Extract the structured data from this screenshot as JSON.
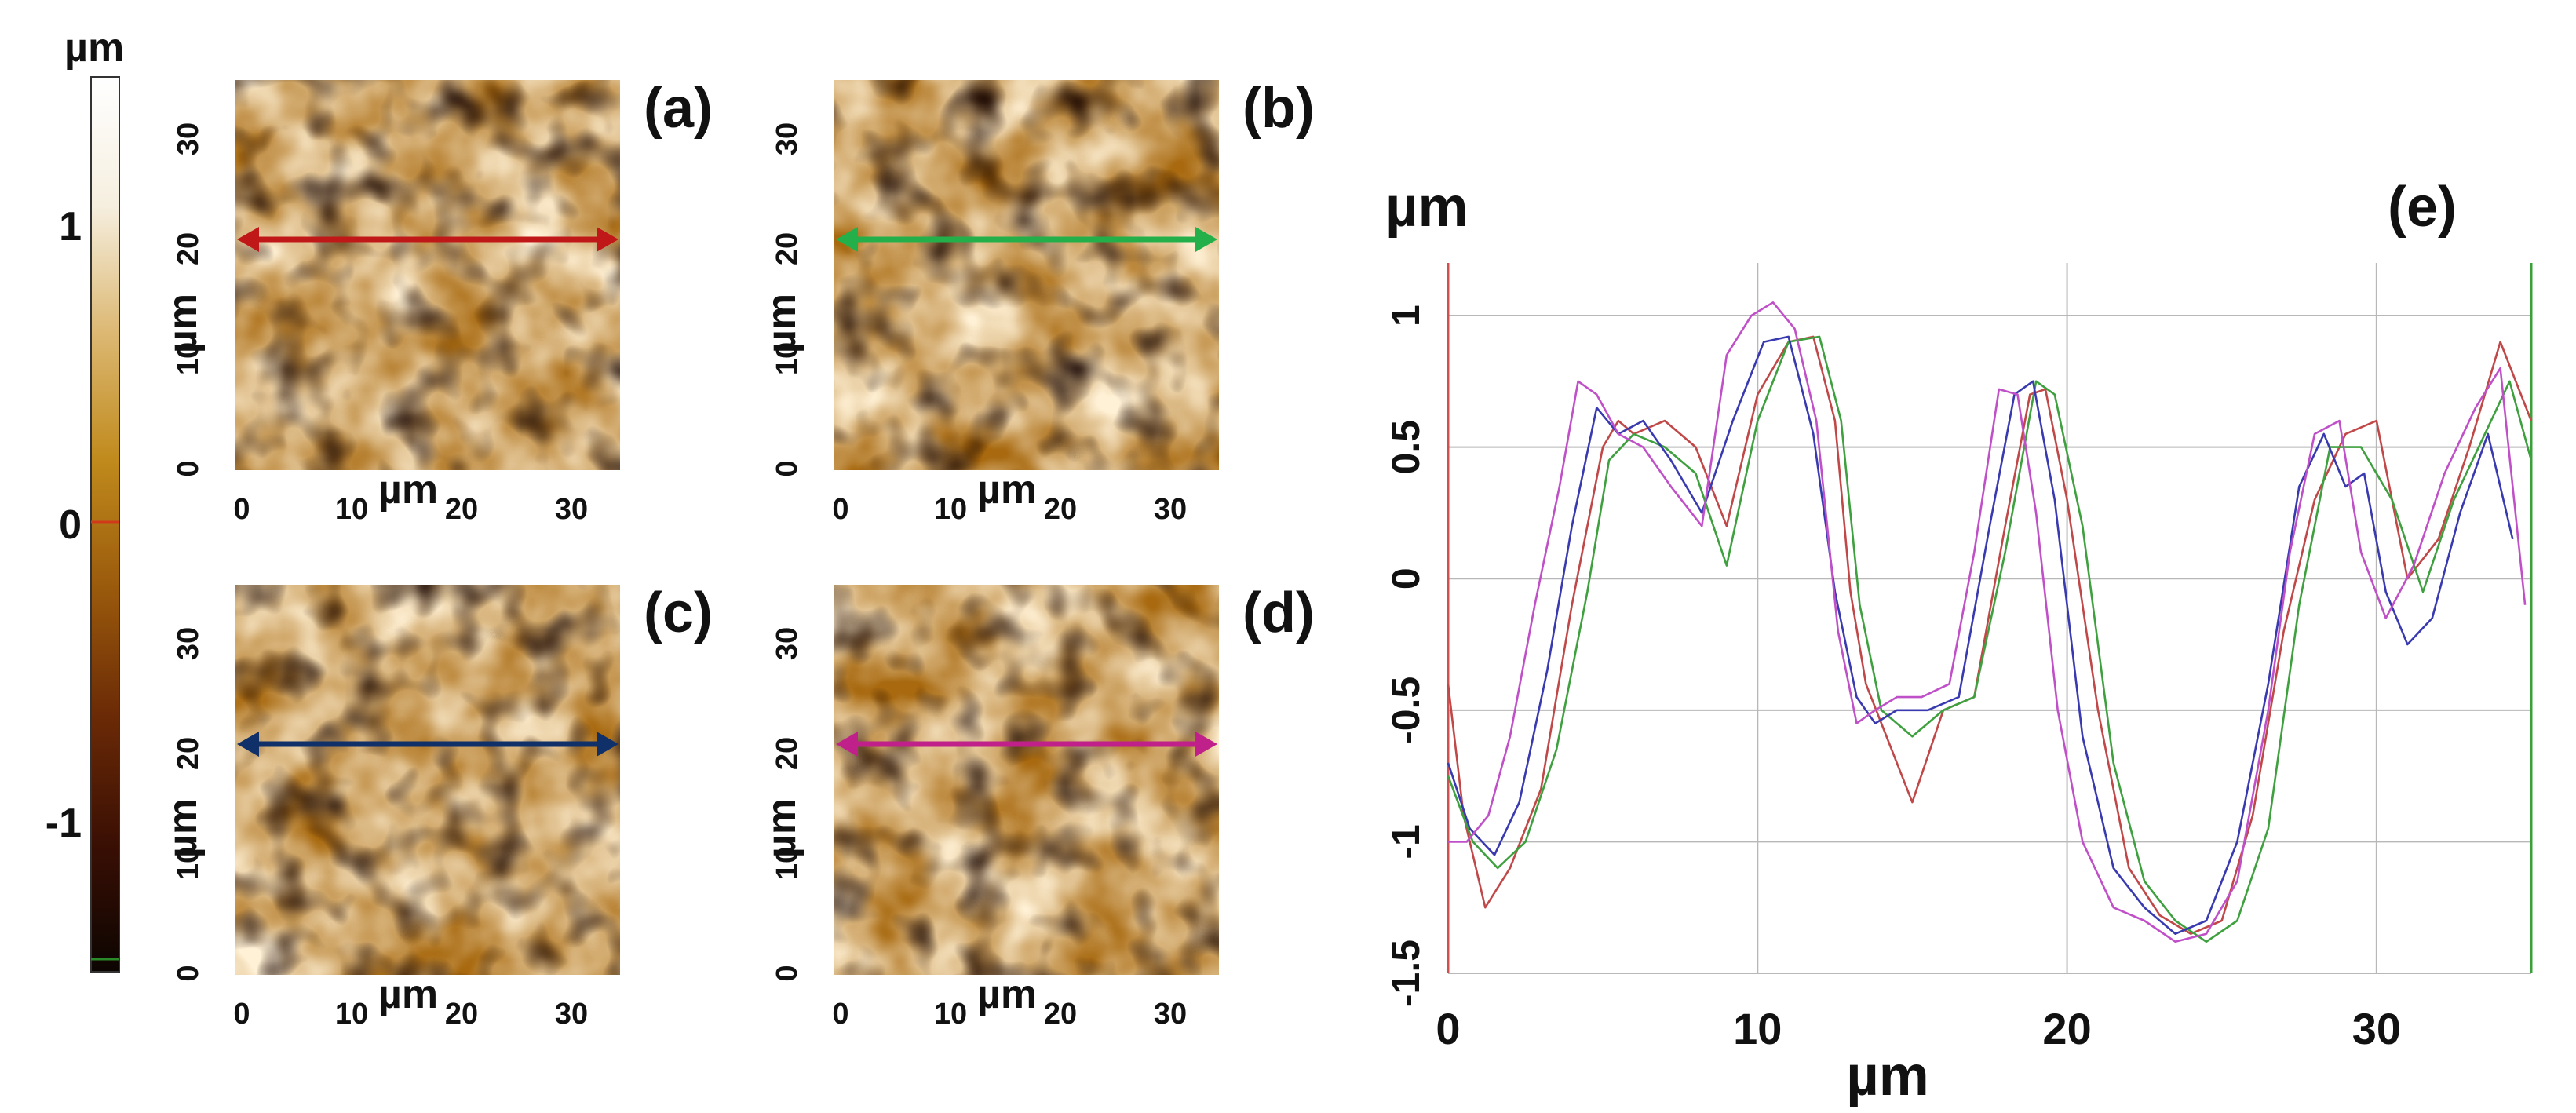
{
  "colorbar": {
    "unit": "µm",
    "ticks": [
      {
        "label": "1",
        "value": 1
      },
      {
        "label": "0",
        "value": 0
      },
      {
        "label": "-1",
        "value": -1
      }
    ],
    "range": [
      -1.5,
      1.5
    ],
    "gradient": [
      "#0c0502",
      "#3a0f04",
      "#6b2a06",
      "#9a5a0c",
      "#c08a1c",
      "#dcb873",
      "#f6efe0",
      "#ffffff"
    ]
  },
  "panels": [
    {
      "label": "(a)",
      "line_color": "#c01818"
    },
    {
      "label": "(b)",
      "line_color": "#23b04a"
    },
    {
      "label": "(c)",
      "line_color": "#10306a"
    },
    {
      "label": "(d)",
      "line_color": "#c0208a"
    }
  ],
  "panel_axis": {
    "unit": "µm",
    "x_ticks": [
      "0",
      "10",
      "20",
      "30"
    ],
    "y_ticks": [
      "0",
      "10",
      "20",
      "30"
    ]
  },
  "chart_data": {
    "type": "line",
    "label": "(e)",
    "ylabel": "µm",
    "xlabel": "µm",
    "xlim": [
      0,
      35
    ],
    "ylim": [
      -1.5,
      1.2
    ],
    "x_ticks": [
      0,
      10,
      20,
      30
    ],
    "x_tick_labels": [
      "0",
      "10",
      "20",
      "30"
    ],
    "y_ticks": [
      1,
      0.5,
      0,
      -0.5,
      -1,
      -1.5
    ],
    "y_tick_labels": [
      "1",
      "0.5",
      "0",
      "-0.5",
      "-1",
      "-1.5"
    ],
    "grid": true,
    "series": [
      {
        "color": "#c04848",
        "x": [
          0,
          0.5,
          1.2,
          2,
          3,
          4,
          4.5,
          5,
          5.5,
          6,
          7,
          8,
          9,
          10,
          11,
          11.8,
          12.5,
          13,
          13.5,
          14,
          15,
          16,
          17,
          18,
          18.8,
          19.3,
          20,
          21,
          22,
          23,
          24,
          25,
          26,
          27,
          28,
          29,
          30,
          31,
          32,
          33,
          34,
          35
        ],
        "y": [
          -0.4,
          -0.9,
          -1.25,
          -1.1,
          -0.8,
          -0.1,
          0.2,
          0.5,
          0.6,
          0.55,
          0.6,
          0.5,
          0.2,
          0.7,
          0.9,
          0.92,
          0.6,
          -0.05,
          -0.4,
          -0.55,
          -0.85,
          -0.5,
          -0.45,
          0.2,
          0.7,
          0.72,
          0.3,
          -0.5,
          -1.1,
          -1.28,
          -1.35,
          -1.3,
          -0.9,
          -0.2,
          0.3,
          0.55,
          0.6,
          0.0,
          0.15,
          0.5,
          0.9,
          0.6
        ]
      },
      {
        "color": "#3ea03e",
        "x": [
          0,
          0.8,
          1.6,
          2.5,
          3.5,
          4.5,
          5.2,
          6,
          7,
          8,
          9,
          10,
          11,
          12,
          12.7,
          13.3,
          14,
          15,
          16,
          17,
          18,
          19,
          19.6,
          20.5,
          21.5,
          22.5,
          23.5,
          24.5,
          25.5,
          26.5,
          27.5,
          28.5,
          29.5,
          30.5,
          31.5,
          32.5,
          33.5,
          34.3,
          35
        ],
        "y": [
          -0.75,
          -1.0,
          -1.1,
          -1.0,
          -0.65,
          -0.05,
          0.45,
          0.55,
          0.5,
          0.4,
          0.05,
          0.6,
          0.9,
          0.92,
          0.6,
          -0.1,
          -0.5,
          -0.6,
          -0.5,
          -0.45,
          0.1,
          0.75,
          0.7,
          0.2,
          -0.7,
          -1.15,
          -1.3,
          -1.38,
          -1.3,
          -0.95,
          -0.1,
          0.5,
          0.5,
          0.3,
          -0.05,
          0.3,
          0.55,
          0.75,
          0.45
        ]
      },
      {
        "color": "#3a3ab0",
        "x": [
          0,
          0.7,
          1.5,
          2.3,
          3.2,
          4,
          4.8,
          5.5,
          6.3,
          7.2,
          8.2,
          9.2,
          10.2,
          11,
          11.8,
          12.5,
          13.2,
          13.8,
          14.5,
          15.5,
          16.5,
          17.5,
          18.3,
          18.9,
          19.6,
          20.5,
          21.5,
          22.5,
          23.5,
          24.5,
          25.5,
          26.5,
          27.5,
          28.3,
          29,
          29.6,
          30.3,
          31,
          31.8,
          32.7,
          33.6,
          34.4
        ],
        "y": [
          -0.7,
          -0.95,
          -1.05,
          -0.85,
          -0.35,
          0.2,
          0.65,
          0.55,
          0.6,
          0.45,
          0.25,
          0.6,
          0.9,
          0.92,
          0.55,
          -0.05,
          -0.45,
          -0.55,
          -0.5,
          -0.5,
          -0.45,
          0.2,
          0.7,
          0.75,
          0.3,
          -0.6,
          -1.1,
          -1.25,
          -1.35,
          -1.3,
          -1.0,
          -0.4,
          0.35,
          0.55,
          0.35,
          0.4,
          -0.05,
          -0.25,
          -0.15,
          0.25,
          0.55,
          0.15
        ]
      },
      {
        "color": "#c050c8",
        "x": [
          0,
          0.6,
          1.3,
          2,
          2.8,
          3.6,
          4.2,
          4.8,
          5.5,
          6.3,
          7.2,
          8.2,
          9,
          9.8,
          10.5,
          11.2,
          11.9,
          12.6,
          13.2,
          13.8,
          14.5,
          15.3,
          16.2,
          17,
          17.8,
          18.4,
          19,
          19.7,
          20.5,
          21.5,
          22.5,
          23.5,
          24.5,
          25.5,
          26.5,
          27.2,
          28,
          28.8,
          29.5,
          30.3,
          31.2,
          32.2,
          33.2,
          34,
          34.8
        ],
        "y": [
          -1.0,
          -1.0,
          -0.9,
          -0.6,
          -0.1,
          0.35,
          0.75,
          0.7,
          0.55,
          0.5,
          0.35,
          0.2,
          0.85,
          1.0,
          1.05,
          0.95,
          0.6,
          -0.2,
          -0.55,
          -0.5,
          -0.45,
          -0.45,
          -0.4,
          0.1,
          0.72,
          0.7,
          0.25,
          -0.5,
          -1.0,
          -1.25,
          -1.3,
          -1.38,
          -1.35,
          -1.15,
          -0.5,
          0.1,
          0.55,
          0.6,
          0.1,
          -0.15,
          0.05,
          0.4,
          0.65,
          0.8,
          -0.1
        ]
      }
    ]
  }
}
